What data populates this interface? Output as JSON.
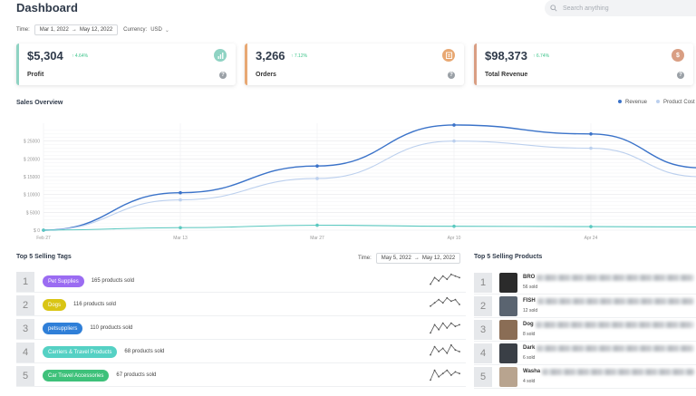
{
  "header": {
    "title": "Dashboard",
    "search_placeholder": "Search anything"
  },
  "filters": {
    "time_label": "Time:",
    "date_start": "Mar 1, 2022",
    "date_end": "May 12, 2022",
    "currency_label": "Currency:",
    "currency_value": "USD"
  },
  "cards": [
    {
      "value": "$5,304",
      "pct": "↑ 4.64%",
      "label": "Profit",
      "accent": "#8fd3c3",
      "icon_color": "#8fd3c3",
      "icon": "bar-chart-icon"
    },
    {
      "value": "3,266",
      "pct": "↑ 7.12%",
      "label": "Orders",
      "accent": "#e8a873",
      "icon_color": "#e8a873",
      "icon": "clipboard-icon"
    },
    {
      "value": "$98,373",
      "pct": "↑ 6.74%",
      "label": "Total Revenue",
      "accent": "#d99e83",
      "icon_color": "#d99e83",
      "icon": "dollar-icon"
    }
  ],
  "sales_overview": {
    "title": "Sales Overview"
  },
  "chart_data": {
    "type": "line",
    "x": [
      "Feb 27",
      "Mar 13",
      "Mar 27",
      "Apr 10",
      "Apr 24"
    ],
    "y_ticks": [
      "$ 0",
      "$ 5000",
      "$ 10000",
      "$ 15000",
      "$ 20000",
      "$ 25000"
    ],
    "ylim": [
      0,
      30000
    ],
    "series": [
      {
        "name": "Revenue",
        "color": "#3b73c9",
        "x": [
          0,
          1,
          2,
          3,
          4,
          4.8
        ],
        "values": [
          0,
          10500,
          18000,
          29500,
          27000,
          17500
        ]
      },
      {
        "name": "Product Cost",
        "color": "#bcd0ee",
        "x": [
          0,
          1,
          2,
          3,
          4,
          4.8
        ],
        "values": [
          0,
          8500,
          14500,
          25000,
          23000,
          15000
        ]
      },
      {
        "color": "#5bc9c0",
        "x": [
          0,
          1,
          2,
          3,
          4,
          4.8
        ],
        "values": [
          0,
          700,
          1400,
          1100,
          1000,
          900
        ]
      }
    ],
    "grid": true,
    "legend": "top-right"
  },
  "top_tags": {
    "title": "Top 5 Selling Tags",
    "time_label": "Time:",
    "date_start": "May 5, 2022",
    "date_end": "May 12, 2022",
    "items": [
      {
        "rank": "1",
        "tag": "Pet Supplies",
        "sold": "165 products sold",
        "color": "#9b6cf2",
        "spark": [
          3,
          7,
          5,
          8,
          6,
          9,
          8,
          7
        ]
      },
      {
        "rank": "2",
        "tag": "Dogs",
        "sold": "116 products sold",
        "color": "#d9c514",
        "spark": [
          4,
          6,
          8,
          6,
          9,
          7,
          8,
          5
        ]
      },
      {
        "rank": "3",
        "tag": "petsuppliers",
        "sold": "110 products sold",
        "color": "#2f7fd8",
        "spark": [
          2,
          7,
          4,
          8,
          5,
          8,
          6,
          7
        ]
      },
      {
        "rank": "4",
        "tag": "Carriers & Travel Products",
        "sold": "68 products sold",
        "color": "#55d1c4",
        "spark": [
          3,
          8,
          5,
          7,
          4,
          9,
          6,
          5
        ]
      },
      {
        "rank": "5",
        "tag": "Car Travel Accessories",
        "sold": "67 products sold",
        "color": "#3ec17a",
        "spark": [
          2,
          8,
          4,
          6,
          8,
          5,
          7,
          6
        ]
      }
    ]
  },
  "top_products": {
    "title": "Top 5 Selling Products",
    "items": [
      {
        "rank": "1",
        "name": "BRO",
        "sold": "56 sold",
        "thumb": "#2b2b2b"
      },
      {
        "rank": "2",
        "name": "FISH",
        "sold": "12 sold",
        "thumb": "#5a6470"
      },
      {
        "rank": "3",
        "name": "Dog",
        "sold": "8 sold",
        "thumb": "#8a6d55"
      },
      {
        "rank": "4",
        "name": "Dark",
        "sold": "6 sold",
        "thumb": "#3a3f46"
      },
      {
        "rank": "5",
        "name": "Washa",
        "sold": "4 sold",
        "thumb": "#b8a48f"
      }
    ]
  }
}
